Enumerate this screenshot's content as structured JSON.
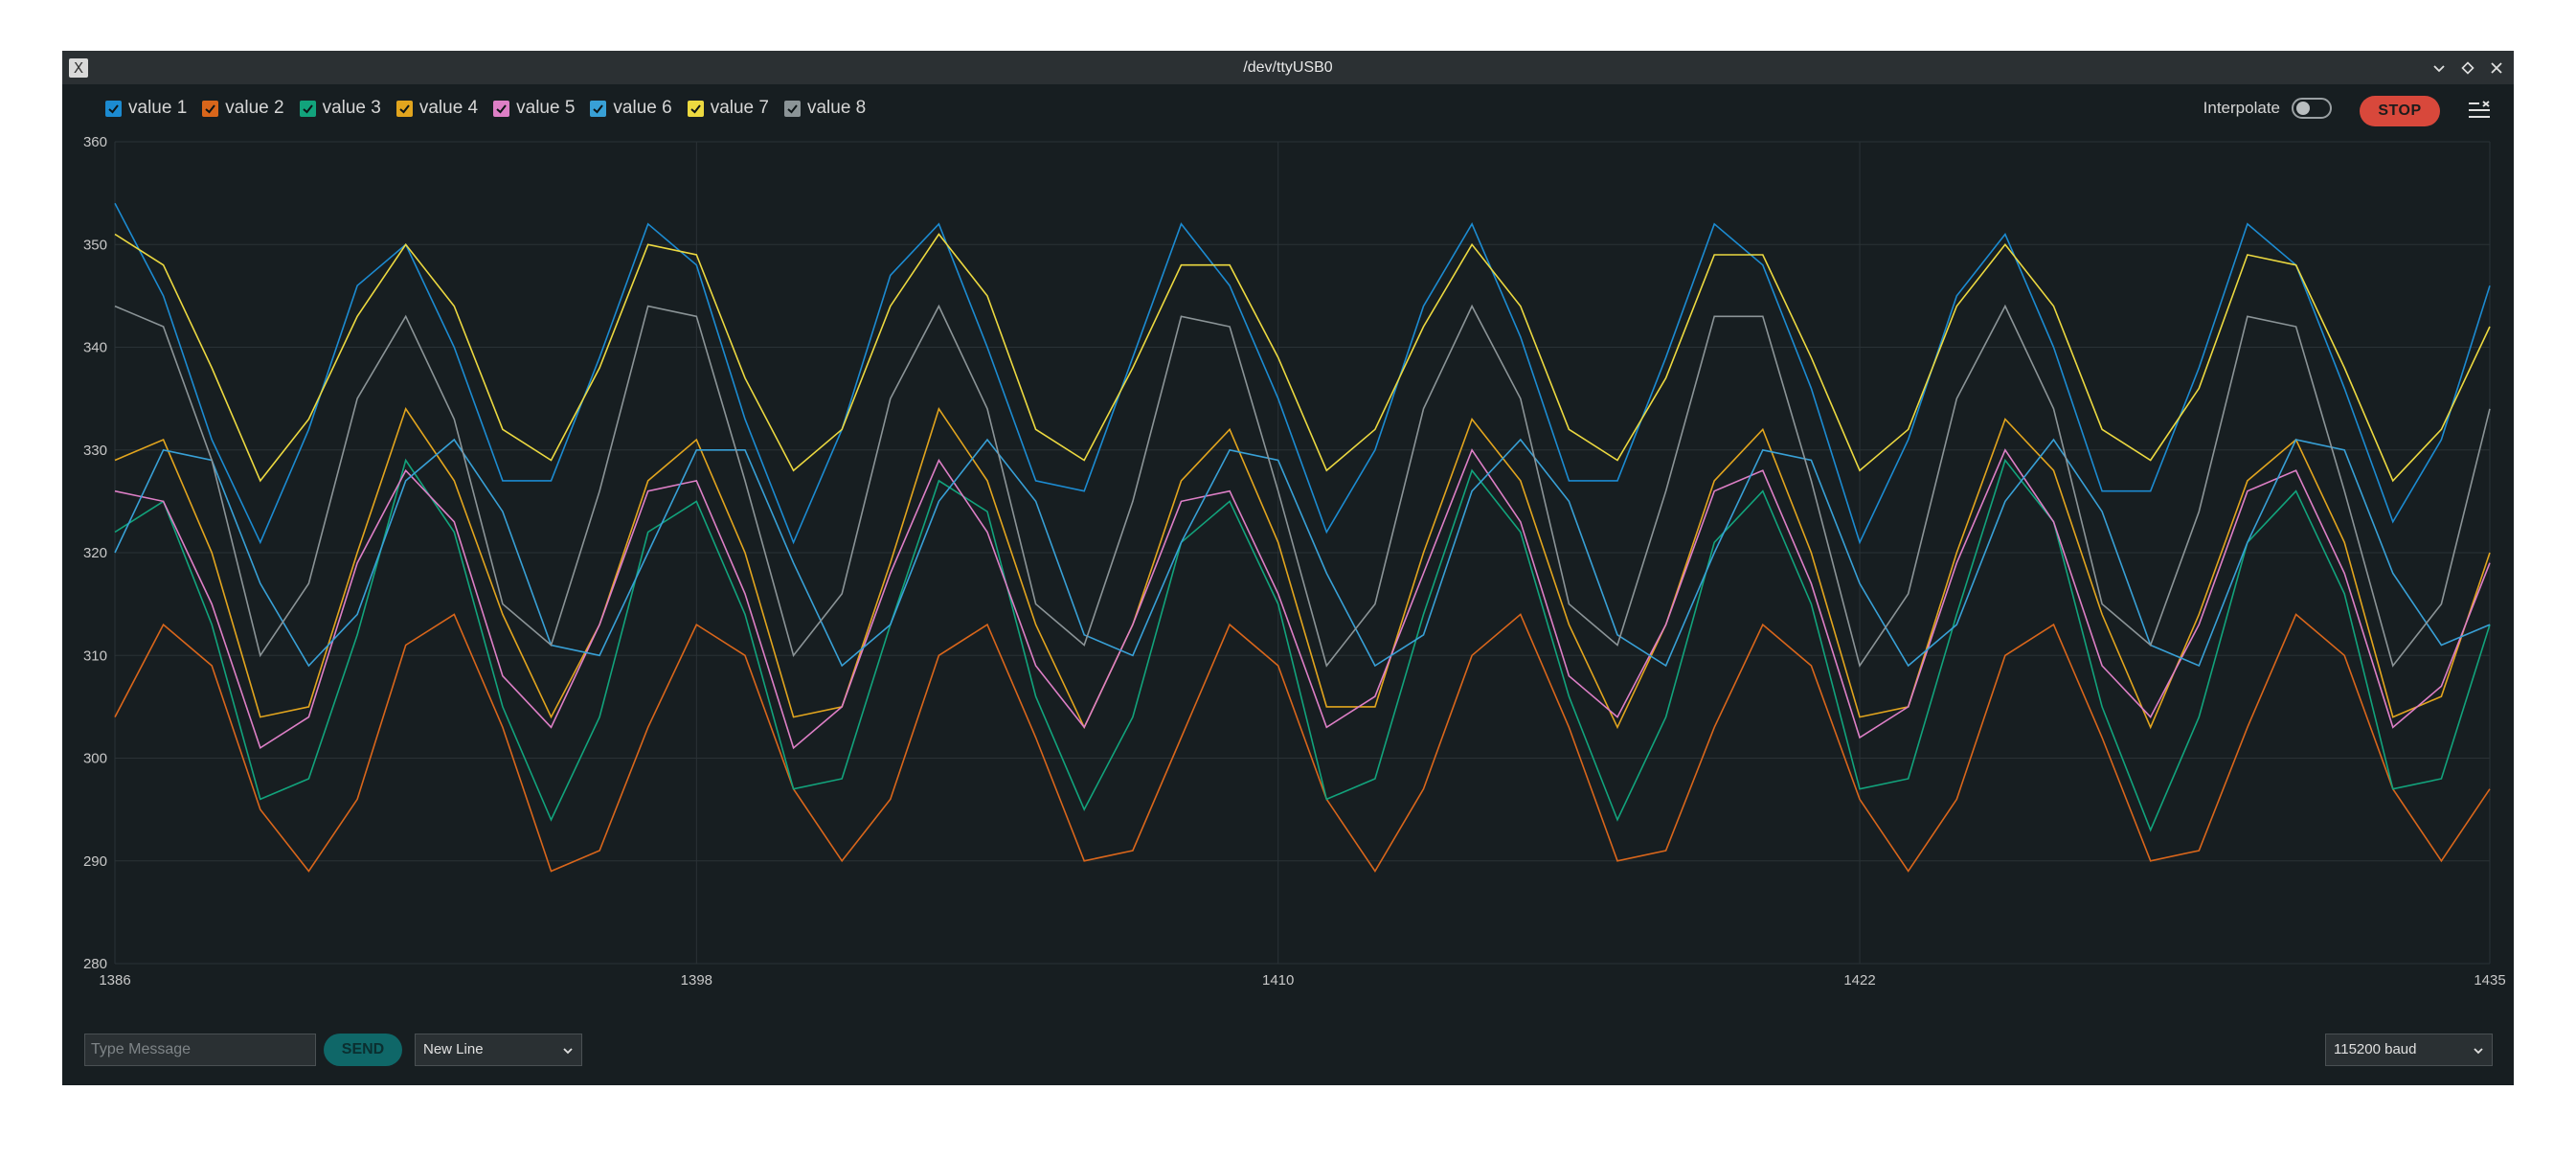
{
  "window": {
    "title": "/dev/ttyUSB0",
    "icon": "x-app-icon",
    "controls": [
      "minimize-chevron-icon",
      "maximize-diamond-icon",
      "close-icon"
    ]
  },
  "legend": [
    {
      "label": "value 1",
      "color": "#1c8bd1",
      "checked": true
    },
    {
      "label": "value 2",
      "color": "#d9661b",
      "checked": true
    },
    {
      "label": "value 3",
      "color": "#12a37c",
      "checked": true
    },
    {
      "label": "value 4",
      "color": "#e2a51e",
      "checked": true
    },
    {
      "label": "value 5",
      "color": "#dd7fc6",
      "checked": true
    },
    {
      "label": "value 6",
      "color": "#38a0d6",
      "checked": true
    },
    {
      "label": "value 7",
      "color": "#ecd940",
      "checked": true
    },
    {
      "label": "value 8",
      "color": "#8b9497",
      "checked": true
    }
  ],
  "controls": {
    "interpolate_label": "Interpolate",
    "interpolate_on": false,
    "stop_label": "STOP",
    "menu_icon": "clear-list-icon"
  },
  "chart_data": {
    "type": "line",
    "x": [
      1386,
      1387,
      1388,
      1389,
      1390,
      1391,
      1392,
      1393,
      1394,
      1395,
      1396,
      1397,
      1398,
      1399,
      1400,
      1401,
      1402,
      1403,
      1404,
      1405,
      1406,
      1407,
      1408,
      1409,
      1410,
      1411,
      1412,
      1413,
      1414,
      1415,
      1416,
      1417,
      1418,
      1419,
      1420,
      1421,
      1422,
      1423,
      1424,
      1425,
      1426,
      1427,
      1428,
      1429,
      1430,
      1431,
      1432,
      1433,
      1434,
      1435
    ],
    "xticks": [
      1386,
      1398,
      1410,
      1422,
      1435
    ],
    "ylim": [
      280,
      360
    ],
    "yticks": [
      280,
      290,
      300,
      310,
      320,
      330,
      340,
      350,
      360
    ],
    "grid": true,
    "series": [
      {
        "name": "value 1",
        "color": "#1c8bd1",
        "values": [
          354,
          345,
          331,
          321,
          332,
          346,
          350,
          340,
          327,
          327,
          339,
          352,
          348,
          333,
          321,
          332,
          347,
          352,
          340,
          327,
          326,
          339,
          352,
          346,
          335,
          322,
          330,
          344,
          352,
          341,
          327,
          327,
          339,
          352,
          348,
          336,
          321,
          331,
          345,
          351,
          340,
          326,
          326,
          338,
          352,
          348,
          336,
          323,
          331,
          346
        ]
      },
      {
        "name": "value 2",
        "color": "#d9661b",
        "values": [
          304,
          313,
          309,
          295,
          289,
          296,
          311,
          314,
          303,
          289,
          291,
          303,
          313,
          310,
          297,
          290,
          296,
          310,
          313,
          302,
          290,
          291,
          302,
          313,
          309,
          296,
          289,
          297,
          310,
          314,
          303,
          290,
          291,
          303,
          313,
          309,
          296,
          289,
          296,
          310,
          313,
          302,
          290,
          291,
          303,
          314,
          310,
          297,
          290,
          297
        ]
      },
      {
        "name": "value 3",
        "color": "#12a37c",
        "values": [
          322,
          325,
          313,
          296,
          298,
          312,
          329,
          322,
          305,
          294,
          304,
          322,
          325,
          314,
          297,
          298,
          313,
          327,
          324,
          306,
          295,
          304,
          321,
          325,
          315,
          296,
          298,
          314,
          328,
          322,
          306,
          294,
          304,
          321,
          326,
          315,
          297,
          298,
          314,
          329,
          323,
          305,
          293,
          304,
          321,
          326,
          316,
          297,
          298,
          313
        ]
      },
      {
        "name": "value 4",
        "color": "#e2a51e",
        "values": [
          329,
          331,
          320,
          304,
          305,
          320,
          334,
          327,
          314,
          304,
          313,
          327,
          331,
          320,
          304,
          305,
          319,
          334,
          327,
          313,
          303,
          313,
          327,
          332,
          321,
          305,
          305,
          320,
          333,
          327,
          313,
          303,
          313,
          327,
          332,
          320,
          304,
          305,
          320,
          333,
          328,
          314,
          303,
          314,
          327,
          331,
          321,
          304,
          306,
          320
        ]
      },
      {
        "name": "value 5",
        "color": "#dd7fc6",
        "values": [
          326,
          325,
          315,
          301,
          304,
          319,
          328,
          323,
          308,
          303,
          313,
          326,
          327,
          316,
          301,
          305,
          318,
          329,
          322,
          309,
          303,
          313,
          325,
          326,
          316,
          303,
          306,
          318,
          330,
          323,
          308,
          304,
          313,
          326,
          328,
          317,
          302,
          305,
          319,
          330,
          323,
          309,
          304,
          313,
          326,
          328,
          318,
          303,
          307,
          319
        ]
      },
      {
        "name": "value 6",
        "color": "#38a0d6",
        "values": [
          320,
          330,
          329,
          317,
          309,
          314,
          327,
          331,
          324,
          311,
          310,
          320,
          330,
          330,
          319,
          309,
          313,
          325,
          331,
          325,
          312,
          310,
          321,
          330,
          329,
          318,
          309,
          312,
          326,
          331,
          325,
          312,
          309,
          320,
          330,
          329,
          317,
          309,
          313,
          325,
          331,
          324,
          311,
          309,
          321,
          331,
          330,
          318,
          311,
          313
        ]
      },
      {
        "name": "value 7",
        "color": "#ecd940",
        "values": [
          351,
          348,
          338,
          327,
          333,
          343,
          350,
          344,
          332,
          329,
          338,
          350,
          349,
          337,
          328,
          332,
          344,
          351,
          345,
          332,
          329,
          338,
          348,
          348,
          339,
          328,
          332,
          342,
          350,
          344,
          332,
          329,
          337,
          349,
          349,
          339,
          328,
          332,
          344,
          350,
          344,
          332,
          329,
          336,
          349,
          348,
          338,
          327,
          332,
          342
        ]
      },
      {
        "name": "value 8",
        "color": "#8b9497",
        "values": [
          344,
          342,
          329,
          310,
          317,
          335,
          343,
          333,
          315,
          311,
          326,
          344,
          343,
          327,
          310,
          316,
          335,
          344,
          334,
          315,
          311,
          325,
          343,
          342,
          326,
          309,
          315,
          334,
          344,
          335,
          315,
          311,
          326,
          343,
          343,
          327,
          309,
          316,
          335,
          344,
          334,
          315,
          311,
          324,
          343,
          342,
          326,
          309,
          315,
          334
        ]
      }
    ]
  },
  "bottom": {
    "message_placeholder": "Type Message",
    "send_label": "SEND",
    "line_ending": "New Line",
    "baud_rate": "115200 baud"
  }
}
